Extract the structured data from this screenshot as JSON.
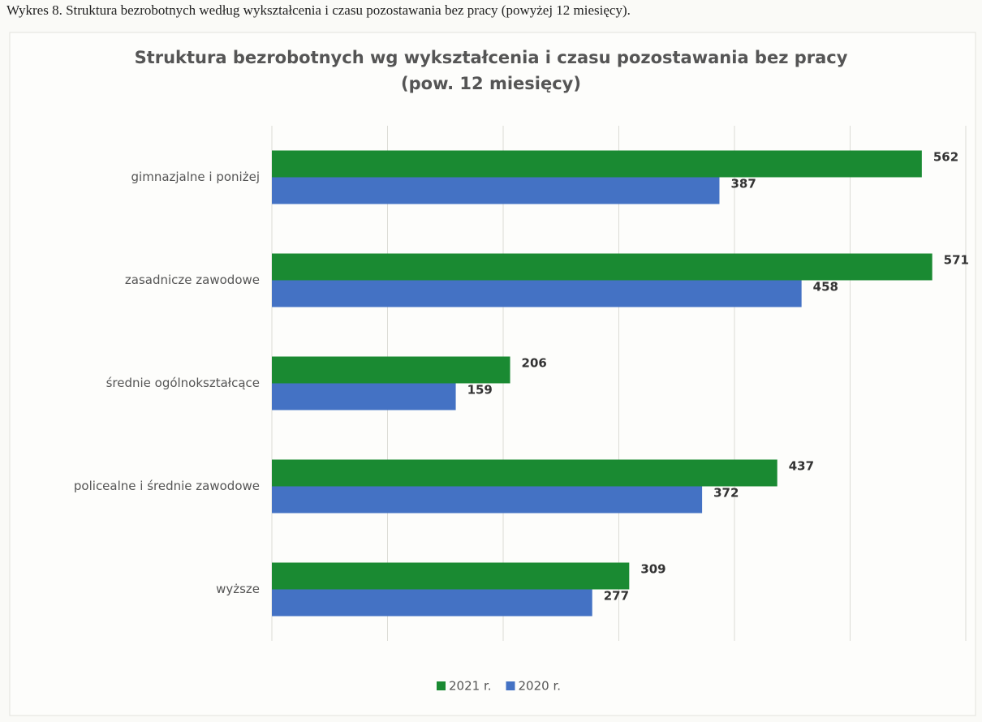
{
  "caption": "Wykres 8.  Struktura bezrobotnych według wykształcenia i czasu pozostawania bez pracy (powyżej 12 miesięcy).",
  "chart_data": {
    "type": "barh",
    "title": "Struktura bezrobotnych wg wykształcenia i czasu pozostawania bez pracy",
    "subtitle": "(pow. 12 miesięcy)",
    "categories": [
      "gimnazjalne i poniżej",
      "zasadnicze zawodowe",
      "średnie ogólnokształcące",
      "policealne i średnie zawodowe",
      "wyższe"
    ],
    "series": [
      {
        "name": "2021 r.",
        "color": "#1a8a32",
        "values": [
          562,
          571,
          206,
          437,
          309
        ]
      },
      {
        "name": "2020 r.",
        "color": "#4472c4",
        "values": [
          387,
          458,
          159,
          372,
          277
        ]
      }
    ],
    "xlim": [
      0,
      600
    ],
    "xticks": [
      0,
      100,
      200,
      300,
      400,
      500,
      600
    ],
    "grid": true,
    "legend": "bottom"
  }
}
